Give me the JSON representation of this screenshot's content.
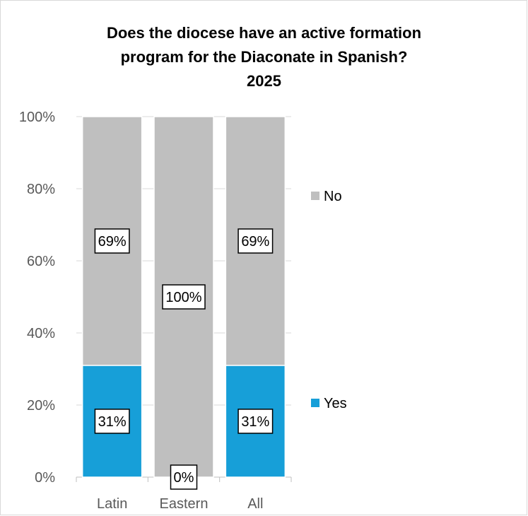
{
  "chart_data": {
    "type": "bar",
    "stacked": true,
    "title_lines": [
      "Does the diocese have an active formation",
      "program for the Diaconate in Spanish?",
      "2025"
    ],
    "categories": [
      "Latin",
      "Eastern",
      "All"
    ],
    "series": [
      {
        "name": "Yes",
        "values": [
          31,
          0,
          31
        ],
        "labels": [
          "31%",
          "0%",
          "31%"
        ],
        "color": "#179fd8"
      },
      {
        "name": "No",
        "values": [
          69,
          100,
          69
        ],
        "labels": [
          "69%",
          "100%",
          "69%"
        ],
        "color": "#bfbfbf"
      }
    ],
    "y_ticks": [
      "0%",
      "20%",
      "40%",
      "60%",
      "80%",
      "100%"
    ],
    "ylim": [
      0,
      100
    ],
    "legend_position": "right",
    "grid": true
  }
}
